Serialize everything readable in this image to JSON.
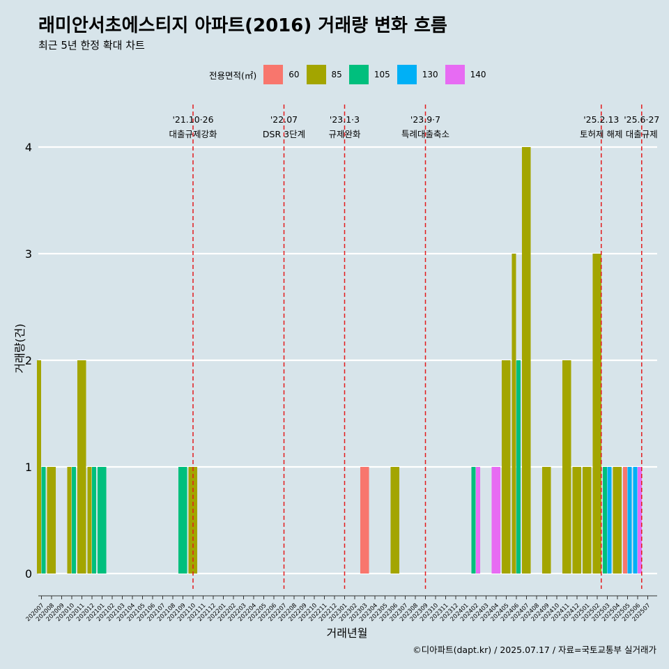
{
  "title": "래미안서초에스티지 아파트(2016) 거래량 변화 흐름",
  "subtitle": "최근 5년 한정 확대 차트",
  "caption": "©디아파트(dapt.kr) / 2025.07.17 / 자료=국토교통부 실거래가",
  "legend": {
    "title": "전용면적(㎡)",
    "items": [
      {
        "label": "60",
        "color": "#f8766d"
      },
      {
        "label": "85",
        "color": "#a3a500"
      },
      {
        "label": "105",
        "color": "#00bf7d"
      },
      {
        "label": "130",
        "color": "#00b0f6"
      },
      {
        "label": "140",
        "color": "#e76bf3"
      }
    ]
  },
  "chart_data": {
    "type": "bar",
    "xlabel": "거래년월",
    "ylabel": "거래량(건)",
    "ylim": [
      0,
      4
    ],
    "yticks": [
      0,
      1,
      2,
      3,
      4
    ],
    "months": [
      "202007",
      "202008",
      "202009",
      "202010",
      "202011",
      "202012",
      "202101",
      "202102",
      "202103",
      "202104",
      "202105",
      "202106",
      "202107",
      "202108",
      "202109",
      "202110",
      "202111",
      "202112",
      "202201",
      "202202",
      "202203",
      "202204",
      "202205",
      "202206",
      "202207",
      "202208",
      "202209",
      "202210",
      "202211",
      "202212",
      "202301",
      "202302",
      "202303",
      "202304",
      "202305",
      "202306",
      "202307",
      "202308",
      "202309",
      "202310",
      "202311",
      "202312",
      "202401",
      "202402",
      "202403",
      "202404",
      "202405",
      "202406",
      "202407",
      "202408",
      "202409",
      "202410",
      "202411",
      "202412",
      "202501",
      "202502",
      "202503",
      "202504",
      "202505",
      "202506",
      "202507"
    ],
    "series": [
      {
        "name": "60",
        "color": "#f8766d",
        "points": [
          {
            "month": "202303",
            "value": 1
          },
          {
            "month": "202505",
            "value": 1
          }
        ]
      },
      {
        "name": "85",
        "color": "#a3a500",
        "points": [
          {
            "month": "202007",
            "value": 2
          },
          {
            "month": "202008",
            "value": 1
          },
          {
            "month": "202010",
            "value": 1
          },
          {
            "month": "202011",
            "value": 2
          },
          {
            "month": "202012",
            "value": 1
          },
          {
            "month": "202110",
            "value": 1
          },
          {
            "month": "202306",
            "value": 1
          },
          {
            "month": "202405",
            "value": 2
          },
          {
            "month": "202406",
            "value": 3
          },
          {
            "month": "202407",
            "value": 4
          },
          {
            "month": "202409",
            "value": 1
          },
          {
            "month": "202411",
            "value": 2
          },
          {
            "month": "202412",
            "value": 1
          },
          {
            "month": "202501",
            "value": 1
          },
          {
            "month": "202502",
            "value": 3
          },
          {
            "month": "202504",
            "value": 1
          }
        ]
      },
      {
        "name": "105",
        "color": "#00bf7d",
        "points": [
          {
            "month": "202007",
            "value": 1
          },
          {
            "month": "202010",
            "value": 1
          },
          {
            "month": "202012",
            "value": 1
          },
          {
            "month": "202101",
            "value": 1
          },
          {
            "month": "202109",
            "value": 1
          },
          {
            "month": "202402",
            "value": 1
          },
          {
            "month": "202406",
            "value": 2
          },
          {
            "month": "202503",
            "value": 1
          }
        ]
      },
      {
        "name": "130",
        "color": "#00b0f6",
        "points": [
          {
            "month": "202503",
            "value": 1
          },
          {
            "month": "202505",
            "value": 1
          },
          {
            "month": "202506",
            "value": 1
          }
        ]
      },
      {
        "name": "140",
        "color": "#e76bf3",
        "points": [
          {
            "month": "202402",
            "value": 1
          },
          {
            "month": "202404",
            "value": 1
          },
          {
            "month": "202506",
            "value": 1
          }
        ]
      }
    ],
    "annotations": [
      {
        "date_label": "'21.10·26",
        "text": "대출규제강화",
        "month": "202110",
        "offset": 0.0
      },
      {
        "date_label": "'22.07",
        "text": "DSR 3단계",
        "month": "202207",
        "offset": 0.0
      },
      {
        "date_label": "'23.1·3",
        "text": "규제완화",
        "month": "202301",
        "offset": 0.0
      },
      {
        "date_label": "'23.9·7",
        "text": "특례대출축소",
        "month": "202309",
        "offset": 0.0
      },
      {
        "date_label": "'25.2.13",
        "text": "토허제 해제",
        "month": "202502",
        "offset": 0.4
      },
      {
        "date_label": "'25.6·27",
        "text": "대출규제",
        "month": "202506",
        "offset": 0.4
      }
    ]
  }
}
